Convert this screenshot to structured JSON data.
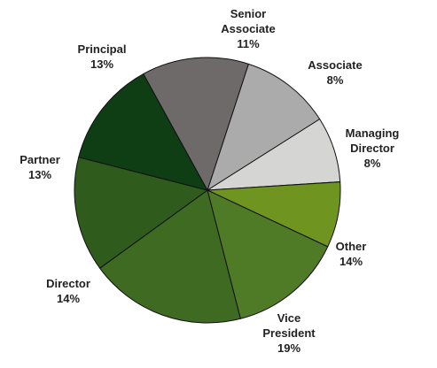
{
  "chart_data": {
    "type": "pie",
    "title": "",
    "start_angle_deg": -72,
    "direction": "clockwise",
    "slices": [
      {
        "label": [
          "Senior",
          "Associate"
        ],
        "percent_label": "11%",
        "value": 11,
        "color": "#ababab"
      },
      {
        "label": [
          "Associate"
        ],
        "percent_label": "8%",
        "value": 8,
        "color": "#d5d5d3"
      },
      {
        "label": [
          "Managing",
          "Director"
        ],
        "percent_label": "8%",
        "value": 8,
        "color": "#6f9420"
      },
      {
        "label": [
          "Other"
        ],
        "percent_label": "14%",
        "value": 14,
        "color": "#4f7a26"
      },
      {
        "label": [
          "Vice",
          "President"
        ],
        "percent_label": "19%",
        "value": 19,
        "color": "#3e6a22"
      },
      {
        "label": [
          "Director"
        ],
        "percent_label": "14%",
        "value": 14,
        "color": "#2f5b1d"
      },
      {
        "label": [
          "Partner"
        ],
        "percent_label": "13%",
        "value": 13,
        "color": "#0f3d14"
      },
      {
        "label": [
          "Principal"
        ],
        "percent_label": "13%",
        "value": 13,
        "color": "#6d6a69"
      }
    ]
  }
}
